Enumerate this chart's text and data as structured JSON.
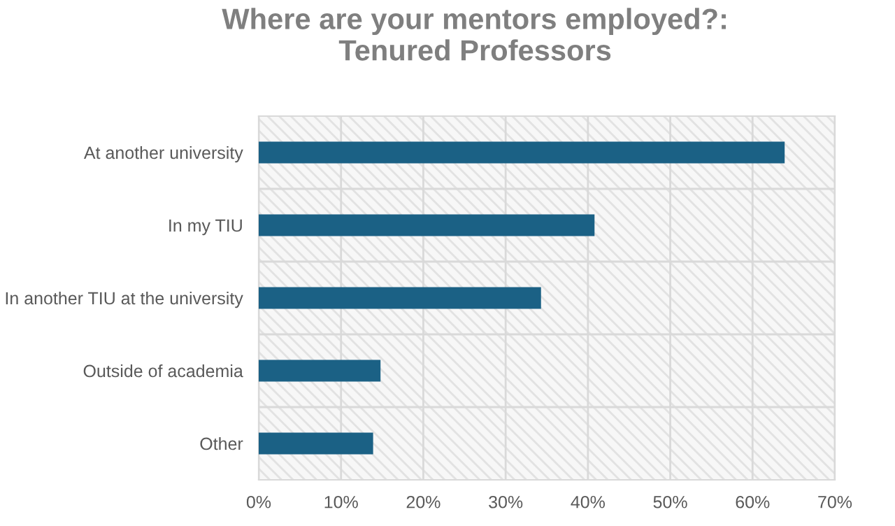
{
  "chart_data": {
    "type": "bar",
    "orientation": "horizontal",
    "title": "Where are your mentors employed?:\nTenured Professors",
    "categories": [
      "At another university",
      "In my TIU",
      "In another TIU at the university",
      "Outside of academia",
      "Other"
    ],
    "values": [
      63.9,
      40.8,
      34.3,
      14.8,
      13.9
    ],
    "color": "#1b6185",
    "xlim": [
      0,
      70
    ],
    "xticks": [
      {
        "value": 0,
        "label": "0%"
      },
      {
        "value": 10,
        "label": "10%"
      },
      {
        "value": 20,
        "label": "20%"
      },
      {
        "value": 30,
        "label": "30%"
      },
      {
        "value": 40,
        "label": "40%"
      },
      {
        "value": 50,
        "label": "50%"
      },
      {
        "value": 60,
        "label": "60%"
      },
      {
        "value": 70,
        "label": "70%"
      }
    ],
    "grid": true
  }
}
